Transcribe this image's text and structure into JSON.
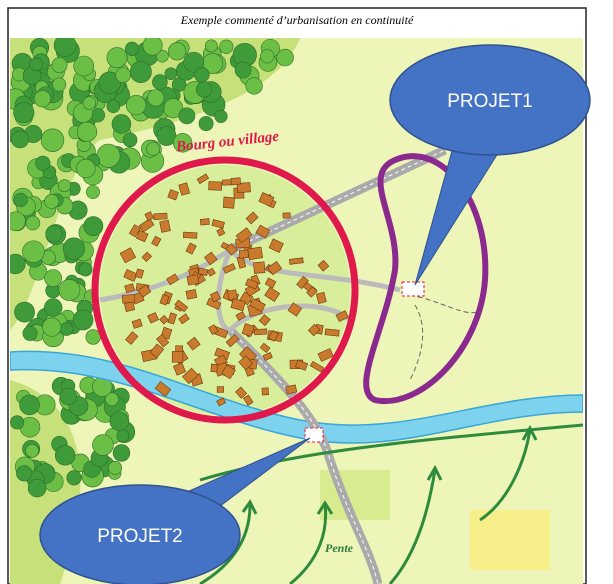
{
  "title": "Exemple commenté d’urbanisation en continuité",
  "map": {
    "labels": {
      "village": "Bourg ou village",
      "slope": "Pente"
    }
  },
  "callouts": [
    {
      "label": "PROJET1"
    },
    {
      "label": "PROJET2"
    }
  ]
}
